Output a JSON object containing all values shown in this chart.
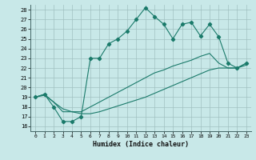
{
  "xlabel": "Humidex (Indice chaleur)",
  "background_color": "#c8e8e8",
  "grid_color": "#a0c0c0",
  "line_color": "#1a7a6a",
  "xlim": [
    -0.5,
    23.5
  ],
  "ylim": [
    15.5,
    28.5
  ],
  "yticks": [
    16,
    17,
    18,
    19,
    20,
    21,
    22,
    23,
    24,
    25,
    26,
    27,
    28
  ],
  "xticks": [
    0,
    1,
    2,
    3,
    4,
    5,
    6,
    7,
    8,
    9,
    10,
    11,
    12,
    13,
    14,
    15,
    16,
    17,
    18,
    19,
    20,
    21,
    22,
    23
  ],
  "line1_x": [
    0,
    1,
    2,
    3,
    4,
    5,
    6,
    7,
    8,
    9,
    10,
    11,
    12,
    13,
    14,
    15,
    16,
    17,
    18,
    19,
    20,
    21,
    22,
    23
  ],
  "line1_y": [
    19.0,
    19.3,
    18.0,
    16.5,
    16.5,
    17.0,
    23.0,
    23.0,
    24.5,
    25.0,
    25.8,
    27.0,
    28.2,
    27.3,
    26.5,
    25.0,
    26.5,
    26.7,
    25.3,
    26.5,
    25.2,
    22.5,
    22.0,
    22.5
  ],
  "line2_x": [
    0,
    1,
    2,
    3,
    4,
    5,
    6,
    7,
    8,
    9,
    10,
    11,
    12,
    13,
    14,
    15,
    16,
    17,
    18,
    19,
    20,
    21,
    22,
    23
  ],
  "line2_y": [
    19.0,
    19.3,
    18.5,
    17.5,
    17.5,
    17.5,
    18.0,
    18.5,
    19.0,
    19.5,
    20.0,
    20.5,
    21.0,
    21.5,
    21.8,
    22.2,
    22.5,
    22.8,
    23.2,
    23.5,
    22.5,
    22.0,
    22.0,
    22.5
  ],
  "line3_x": [
    0,
    1,
    2,
    3,
    4,
    5,
    6,
    7,
    8,
    9,
    10,
    11,
    12,
    13,
    14,
    15,
    16,
    17,
    18,
    19,
    20,
    21,
    22,
    23
  ],
  "line3_y": [
    19.0,
    19.2,
    18.5,
    17.8,
    17.5,
    17.3,
    17.3,
    17.5,
    17.8,
    18.1,
    18.4,
    18.7,
    19.0,
    19.4,
    19.8,
    20.2,
    20.6,
    21.0,
    21.4,
    21.8,
    22.0,
    22.0,
    22.0,
    22.3
  ]
}
